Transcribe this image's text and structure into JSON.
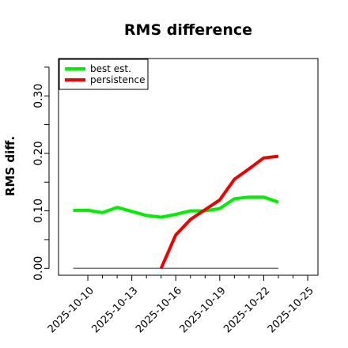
{
  "chart_data": {
    "type": "line",
    "title": "RMS difference",
    "xlabel": "",
    "ylabel": "RMS diff.",
    "x_ticks": [
      "2025-10-10",
      "2025-10-13",
      "2025-10-16",
      "2025-10-19",
      "2025-10-22",
      "2025-10-25"
    ],
    "y_ticks": [
      "0.00",
      "0.10",
      "0.20",
      "0.30"
    ],
    "xlim": [
      "2025-10-08",
      "2025-10-25.7"
    ],
    "ylim": [
      -0.012,
      0.365
    ],
    "grid": false,
    "legend_position": "top-left",
    "series": [
      {
        "name": "best est.",
        "color": "#00ee00",
        "x": [
          "2025-10-09",
          "2025-10-10",
          "2025-10-11",
          "2025-10-12",
          "2025-10-13",
          "2025-10-14",
          "2025-10-15",
          "2025-10-16",
          "2025-10-17",
          "2025-10-18",
          "2025-10-19",
          "2025-10-20",
          "2025-10-21",
          "2025-10-22",
          "2025-10-23"
        ],
        "values": [
          0.101,
          0.101,
          0.097,
          0.106,
          0.099,
          0.092,
          0.089,
          0.094,
          0.1,
          0.1,
          0.104,
          0.121,
          0.124,
          0.124,
          0.115
        ]
      },
      {
        "name": "persistence",
        "color": "#ee0000",
        "x": [
          "2025-10-15",
          "2025-10-16",
          "2025-10-17",
          "2025-10-18",
          "2025-10-19",
          "2025-10-20",
          "2025-10-21",
          "2025-10-22",
          "2025-10-23"
        ],
        "values": [
          0.0,
          0.058,
          0.085,
          0.102,
          0.119,
          0.155,
          0.173,
          0.192,
          0.195
        ]
      }
    ],
    "reference_line": {
      "value": 0.0,
      "color": "#777777",
      "x_start": "2025-10-09",
      "x_end": "2025-10-23"
    }
  }
}
